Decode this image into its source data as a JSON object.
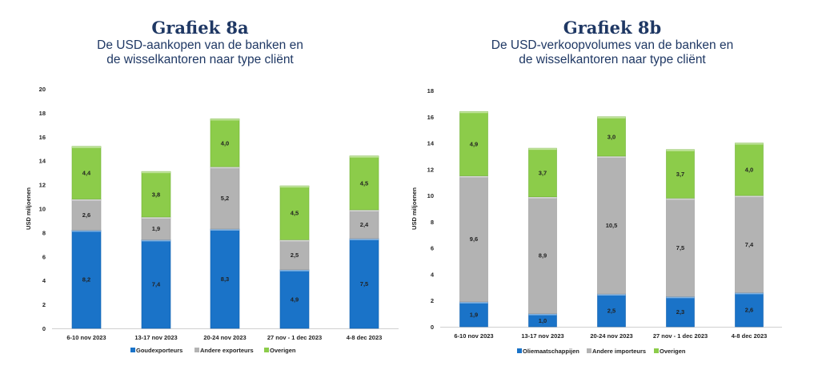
{
  "chart_data": [
    {
      "type": "bar",
      "stacked": true,
      "title": "Grafiek 8a",
      "subtitle": [
        "De USD-aankopen van de banken en",
        "de wisselkantoren naar type cliënt"
      ],
      "ylabel": "USD miljoenen",
      "ylim": [
        0,
        20
      ],
      "yticks": [
        0,
        2,
        4,
        6,
        8,
        10,
        12,
        14,
        16,
        18,
        20
      ],
      "categories": [
        "6-10 nov 2023",
        "13-17 nov 2023",
        "20-24 nov 2023",
        "27 nov - 1 dec 2023",
        "4-8 dec 2023"
      ],
      "series": [
        {
          "name": "Goudexporteurs",
          "color": "#1a73c8",
          "values": [
            8.2,
            7.4,
            8.3,
            4.9,
            7.5
          ],
          "labels": [
            "8,2",
            "7,4",
            "8,3",
            "4,9",
            "7,5"
          ]
        },
        {
          "name": "Andere exporteurs",
          "color": "#b3b3b3",
          "values": [
            2.6,
            1.9,
            5.2,
            2.5,
            2.4
          ],
          "labels": [
            "2,6",
            "1,9",
            "5,2",
            "2,5",
            "2,4"
          ]
        },
        {
          "name": "Overigen",
          "color": "#8ccc4a",
          "values": [
            4.4,
            3.8,
            4.0,
            4.5,
            4.5
          ],
          "labels": [
            "4,4",
            "3,8",
            "4,0",
            "4,5",
            "4,5"
          ]
        }
      ],
      "legend": "bottom"
    },
    {
      "type": "bar",
      "stacked": true,
      "title": "Grafiek 8b",
      "subtitle": [
        "De USD-verkoopvolumes van de banken en",
        "de wisselkantoren naar type cliënt"
      ],
      "ylabel": "USD miljoenen",
      "ylim": [
        0,
        18
      ],
      "yticks": [
        0,
        2,
        4,
        6,
        8,
        10,
        12,
        14,
        16,
        18
      ],
      "categories": [
        "6-10 nov 2023",
        "13-17 nov 2023",
        "20-24 nov 2023",
        "27 nov - 1 dec 2023",
        "4-8 dec 2023"
      ],
      "series": [
        {
          "name": "Oliemaatschappijen",
          "color": "#1a73c8",
          "values": [
            1.9,
            1.0,
            2.5,
            2.3,
            2.6
          ],
          "labels": [
            "1,9",
            "1,0",
            "2,5",
            "2,3",
            "2,6"
          ]
        },
        {
          "name": "Andere importeurs",
          "color": "#b3b3b3",
          "values": [
            9.6,
            8.9,
            10.5,
            7.5,
            7.4
          ],
          "labels": [
            "9,6",
            "8,9",
            "10,5",
            "7,5",
            "7,4"
          ]
        },
        {
          "name": "Overigen",
          "color": "#8ccc4a",
          "values": [
            4.9,
            3.7,
            3.0,
            3.7,
            4.0
          ],
          "labels": [
            "4,9",
            "3,7",
            "3,0",
            "3,7",
            "4,0"
          ]
        }
      ],
      "legend": "bottom"
    }
  ]
}
